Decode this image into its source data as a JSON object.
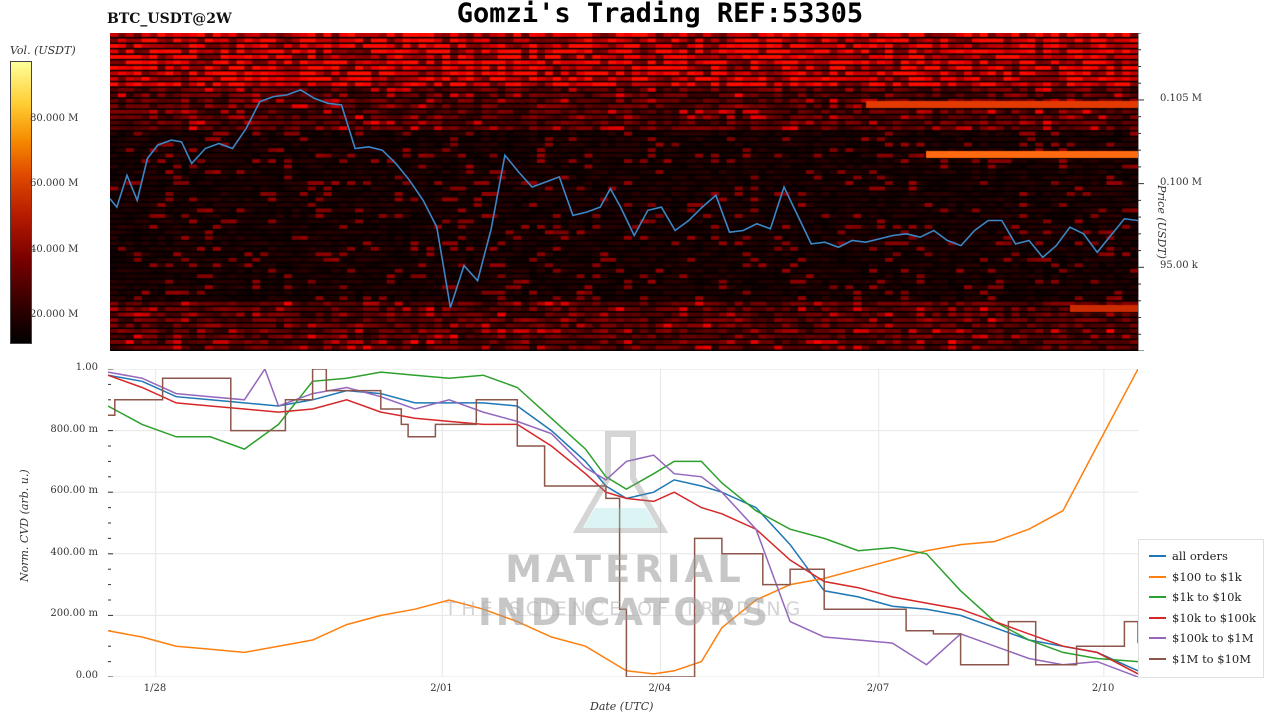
{
  "header": {
    "title": "Gomzi's Trading REF:53305",
    "symbol": "BTC_USDT@2W"
  },
  "watermark": {
    "brand": "MATERIAL INDICATORS",
    "tagline": "THE SCIENCE OF TRADING"
  },
  "colors": {
    "price_line": "#3b86c4",
    "heat_low": "#000000",
    "heat_high": "#ffff80"
  },
  "chart_data": [
    {
      "type": "heatmap",
      "title": "Gomzi's Trading REF:53305",
      "colorbar": {
        "label": "Vol. (USDT)",
        "ticks": [
          "20.000 M",
          "40.000 M",
          "60.000 M",
          "80.000 M"
        ],
        "tick_values": [
          20000000,
          40000000,
          60000000,
          80000000
        ],
        "range": [
          12000000,
          98000000
        ]
      },
      "y_axis": {
        "label": "Price (USDT)",
        "ticks": [
          "95.00 k",
          "0.100 M",
          "0.105 M"
        ],
        "tick_values": [
          95000,
          100000,
          105000
        ],
        "range": [
          90000,
          109000
        ],
        "side": "right"
      },
      "x_range": [
        0,
        15.1
      ],
      "price_series": {
        "x": [
          0,
          0.1,
          0.25,
          0.4,
          0.55,
          0.7,
          0.9,
          1.05,
          1.2,
          1.4,
          1.6,
          1.8,
          2.0,
          2.2,
          2.4,
          2.6,
          2.8,
          3.0,
          3.2,
          3.4,
          3.6,
          3.8,
          4.0,
          4.2,
          4.4,
          4.6,
          4.8,
          5.0,
          5.2,
          5.4,
          5.6,
          5.8,
          6.0,
          6.2,
          6.4,
          6.6,
          6.8,
          7.0,
          7.2,
          7.35,
          7.5,
          7.7,
          7.9,
          8.1,
          8.3,
          8.5,
          8.7,
          8.9,
          9.1,
          9.3,
          9.5,
          9.7,
          9.9,
          10.1,
          10.3,
          10.5,
          10.7,
          10.9,
          11.1,
          11.3,
          11.5,
          11.7,
          11.9,
          12.1,
          12.3,
          12.5,
          12.7,
          12.9,
          13.1,
          13.3,
          13.5,
          13.7,
          13.9,
          14.1,
          14.3,
          14.5,
          14.7,
          14.9,
          15.1
        ],
        "y": [
          99.1,
          98.6,
          100.5,
          99.0,
          101.5,
          102.3,
          102.6,
          102.5,
          101.2,
          102.1,
          102.4,
          102.1,
          103.3,
          104.9,
          105.2,
          105.3,
          105.6,
          105.1,
          104.8,
          104.7,
          102.1,
          102.2,
          102.0,
          101.2,
          100.2,
          99.0,
          97.4,
          92.6,
          95.1,
          94.2,
          97.3,
          101.7,
          100.7,
          99.8,
          100.1,
          100.4,
          98.1,
          98.3,
          98.6,
          99.7,
          98.6,
          96.9,
          98.4,
          98.6,
          97.2,
          97.8,
          98.6,
          99.3,
          97.1,
          97.2,
          97.6,
          97.3,
          99.8,
          98.1,
          96.4,
          96.5,
          96.2,
          96.6,
          96.5,
          96.7,
          96.9,
          97.0,
          96.8,
          97.2,
          96.6,
          96.3,
          97.2,
          97.8,
          97.8,
          96.4,
          96.6,
          95.6,
          96.3,
          97.4,
          97.0,
          95.9,
          96.9,
          97.9,
          97.8
        ]
      }
    },
    {
      "type": "line",
      "xlabel": "Date (UTC)",
      "ylabel": "Norm. CVD (arb. u.)",
      "ylim": [
        0,
        1
      ],
      "x_range": [
        0,
        15.1
      ],
      "x_ticks": [
        "1/28",
        "2/01",
        "2/04",
        "2/07",
        "2/10"
      ],
      "x_tick_values": [
        0.7,
        4.9,
        8.1,
        11.3,
        14.6
      ],
      "y_ticks": [
        "0.00",
        "200.00 m",
        "400.00 m",
        "600.00 m",
        "800.00 m",
        "1.00"
      ],
      "y_tick_values": [
        0,
        0.2,
        0.4,
        0.6,
        0.8,
        1.0
      ],
      "grid": true,
      "legend": "bottom-right",
      "series": [
        {
          "name": "all orders",
          "color": "#1f77b4",
          "x": [
            0,
            0.5,
            1.0,
            1.5,
            2.0,
            2.5,
            3.0,
            3.5,
            4.0,
            4.5,
            5.0,
            5.5,
            6.0,
            6.5,
            7.0,
            7.3,
            7.6,
            8.0,
            8.3,
            8.7,
            9.0,
            9.5,
            10.0,
            10.5,
            11.0,
            11.5,
            12.0,
            12.5,
            13.0,
            13.5,
            14.0,
            14.5,
            15.1
          ],
          "y": [
            0.98,
            0.96,
            0.91,
            0.9,
            0.89,
            0.88,
            0.9,
            0.93,
            0.92,
            0.89,
            0.89,
            0.89,
            0.88,
            0.8,
            0.7,
            0.62,
            0.58,
            0.6,
            0.64,
            0.62,
            0.6,
            0.55,
            0.43,
            0.28,
            0.26,
            0.23,
            0.22,
            0.2,
            0.16,
            0.12,
            0.1,
            0.08,
            0.02
          ]
        },
        {
          "name": "$100 to $1k",
          "color": "#ff7f0e",
          "x": [
            0,
            0.5,
            1.0,
            1.5,
            2.0,
            2.5,
            3.0,
            3.5,
            4.0,
            4.5,
            5.0,
            5.5,
            6.0,
            6.5,
            7.0,
            7.3,
            7.6,
            8.0,
            8.3,
            8.7,
            9.0,
            9.5,
            10.0,
            10.5,
            11.0,
            11.5,
            12.0,
            12.5,
            13.0,
            13.5,
            14.0,
            14.5,
            15.1
          ],
          "y": [
            0.15,
            0.13,
            0.1,
            0.09,
            0.08,
            0.1,
            0.12,
            0.17,
            0.2,
            0.22,
            0.25,
            0.22,
            0.18,
            0.13,
            0.1,
            0.06,
            0.02,
            0.01,
            0.02,
            0.05,
            0.16,
            0.25,
            0.3,
            0.32,
            0.35,
            0.38,
            0.41,
            0.43,
            0.44,
            0.48,
            0.54,
            0.75,
            1.0
          ]
        },
        {
          "name": "$1k to $10k",
          "color": "#2ca02c",
          "x": [
            0,
            0.5,
            1.0,
            1.5,
            2.0,
            2.5,
            3.0,
            3.5,
            4.0,
            4.5,
            5.0,
            5.5,
            6.0,
            6.5,
            7.0,
            7.3,
            7.6,
            8.0,
            8.3,
            8.7,
            9.0,
            9.5,
            10.0,
            10.5,
            11.0,
            11.5,
            12.0,
            12.5,
            13.0,
            13.5,
            14.0,
            14.5,
            15.1
          ],
          "y": [
            0.88,
            0.82,
            0.78,
            0.78,
            0.74,
            0.82,
            0.96,
            0.97,
            0.99,
            0.98,
            0.97,
            0.98,
            0.94,
            0.84,
            0.74,
            0.65,
            0.61,
            0.66,
            0.7,
            0.7,
            0.63,
            0.54,
            0.48,
            0.45,
            0.41,
            0.42,
            0.4,
            0.28,
            0.18,
            0.12,
            0.08,
            0.06,
            0.05
          ]
        },
        {
          "name": "$10k to $100k",
          "color": "#d62728",
          "x": [
            0,
            0.5,
            1.0,
            1.5,
            2.0,
            2.5,
            3.0,
            3.5,
            4.0,
            4.5,
            5.0,
            5.5,
            6.0,
            6.5,
            7.0,
            7.3,
            7.6,
            8.0,
            8.3,
            8.7,
            9.0,
            9.5,
            10.0,
            10.5,
            11.0,
            11.5,
            12.0,
            12.5,
            13.0,
            13.5,
            14.0,
            14.5,
            15.1
          ],
          "y": [
            0.98,
            0.94,
            0.89,
            0.88,
            0.87,
            0.86,
            0.87,
            0.9,
            0.86,
            0.84,
            0.83,
            0.82,
            0.82,
            0.75,
            0.66,
            0.6,
            0.58,
            0.57,
            0.6,
            0.55,
            0.53,
            0.48,
            0.38,
            0.31,
            0.29,
            0.26,
            0.24,
            0.22,
            0.18,
            0.14,
            0.1,
            0.08,
            0.01
          ]
        },
        {
          "name": "$100k to $1M",
          "color": "#9467bd",
          "x": [
            0,
            0.5,
            1.0,
            1.5,
            2.0,
            2.3,
            2.5,
            3.0,
            3.5,
            4.0,
            4.5,
            5.0,
            5.5,
            6.0,
            6.5,
            7.0,
            7.3,
            7.6,
            8.0,
            8.3,
            8.7,
            9.0,
            9.5,
            10.0,
            10.5,
            11.0,
            11.5,
            12.0,
            12.5,
            13.0,
            13.5,
            14.0,
            14.5,
            15.1
          ],
          "y": [
            0.99,
            0.97,
            0.92,
            0.91,
            0.9,
            1.0,
            0.88,
            0.92,
            0.94,
            0.91,
            0.87,
            0.9,
            0.86,
            0.83,
            0.79,
            0.68,
            0.64,
            0.7,
            0.72,
            0.66,
            0.65,
            0.6,
            0.48,
            0.18,
            0.13,
            0.12,
            0.11,
            0.04,
            0.14,
            0.1,
            0.06,
            0.04,
            0.05,
            0.0
          ]
        },
        {
          "name": "$1M to $10M",
          "color": "#8c564b",
          "x": [
            0,
            0.1,
            0.4,
            0.8,
            1.4,
            1.8,
            2.2,
            2.6,
            3.0,
            3.2,
            3.6,
            4.0,
            4.3,
            4.4,
            4.8,
            5.4,
            6.0,
            6.4,
            6.9,
            7.3,
            7.5,
            7.6,
            8.3,
            8.6,
            9.0,
            9.6,
            10.0,
            10.5,
            11.2,
            11.7,
            12.1,
            12.5,
            13.2,
            13.6,
            14.2,
            14.6,
            14.9,
            15.1
          ],
          "y": [
            0.85,
            0.9,
            0.9,
            0.97,
            0.97,
            0.8,
            0.8,
            0.9,
            1.0,
            0.93,
            0.93,
            0.87,
            0.82,
            0.78,
            0.82,
            0.9,
            0.75,
            0.62,
            0.62,
            0.58,
            0.22,
            0.0,
            0.0,
            0.45,
            0.4,
            0.3,
            0.35,
            0.22,
            0.22,
            0.15,
            0.14,
            0.04,
            0.18,
            0.04,
            0.1,
            0.1,
            0.18,
            0.11
          ]
        }
      ]
    }
  ]
}
